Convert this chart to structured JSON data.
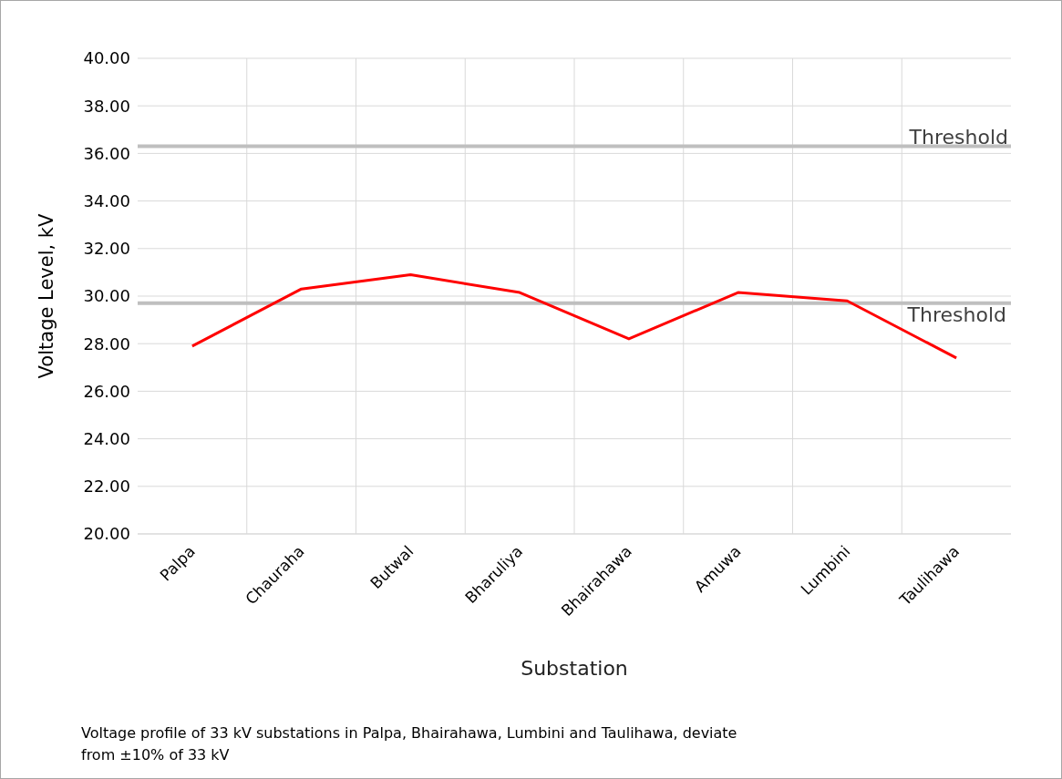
{
  "chart_data": {
    "type": "line",
    "xlabel": "Substation",
    "ylabel": "Voltage Level, kV",
    "categories": [
      "Palpa",
      "Chauraha",
      "Butwal",
      "Bharuliya",
      "Bhairahawa",
      "Amuwa",
      "Lumbini",
      "Taulihawa"
    ],
    "series": [
      {
        "color": "#ff0000",
        "values": [
          27.9,
          30.3,
          30.9,
          30.15,
          28.2,
          30.15,
          29.8,
          27.4
        ]
      }
    ],
    "ylim": [
      20,
      40
    ],
    "yticks": [
      {
        "value": 20,
        "label": "20.00"
      },
      {
        "value": 22,
        "label": "22.00"
      },
      {
        "value": 24,
        "label": "24.00"
      },
      {
        "value": 26,
        "label": "26.00"
      },
      {
        "value": 28,
        "label": "28.00"
      },
      {
        "value": 30,
        "label": "30.00"
      },
      {
        "value": 32,
        "label": "32.00"
      },
      {
        "value": 34,
        "label": "34.00"
      },
      {
        "value": 36,
        "label": "36.00"
      },
      {
        "value": 38,
        "label": "38.00"
      },
      {
        "value": 40,
        "label": "40.00"
      }
    ],
    "ref_lines": [
      {
        "axis": "y",
        "value": 36.3,
        "label": "Threshold",
        "color": "#bfbfbf"
      },
      {
        "axis": "y",
        "value": 29.7,
        "label": "Threshold",
        "color": "#bfbfbf"
      }
    ],
    "grid": true,
    "marker": "none",
    "line_style": "solid",
    "annotations": [
      "Voltage profile of 33 kV substations in Palpa, Bhairahawa, Lumbini and Taulihawa, deviate from ±10% of 33 kV"
    ]
  }
}
